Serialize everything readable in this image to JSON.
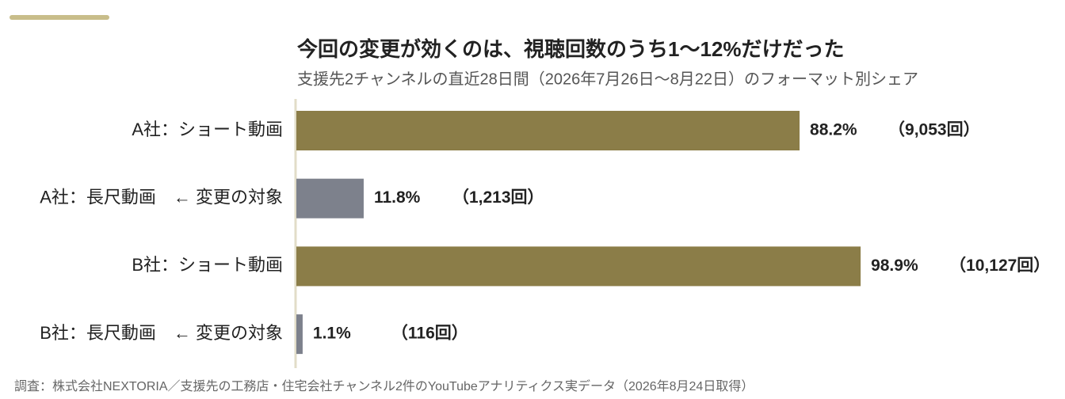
{
  "chart_data": {
    "type": "hbar",
    "title": "今回の変更が効くのは、視聴回数のうち1〜12%だけだった",
    "subtitle": "支援先2チャンネルの直近28日間（2026年7月26日〜8月22日）のフォーマット別シェア",
    "categories": [
      "A社：ショート動画",
      "A社：長尺動画　← 変更の対象",
      "B社：ショート動画",
      "B社：長尺動画　← 変更の対象"
    ],
    "values": [
      88.2,
      11.8,
      98.9,
      1.1
    ],
    "value_labels": [
      "88.2%",
      "11.8%",
      "98.9%",
      "1.1%"
    ],
    "counts": [
      9053,
      1213,
      10127,
      116
    ],
    "count_labels": [
      "（9,053回）",
      "（1,213回）",
      "（10,127回）",
      "（116回）"
    ],
    "colors": [
      "#8b7d48",
      "#7d818c",
      "#8b7d48",
      "#7d818c"
    ],
    "xlim": [
      0,
      100
    ],
    "source": "調査：株式会社NEXTORIA／支援先の工務店・住宅会社チャンネル2件のYouTubeアナリティクス実データ（2026年8月24日取得）"
  }
}
